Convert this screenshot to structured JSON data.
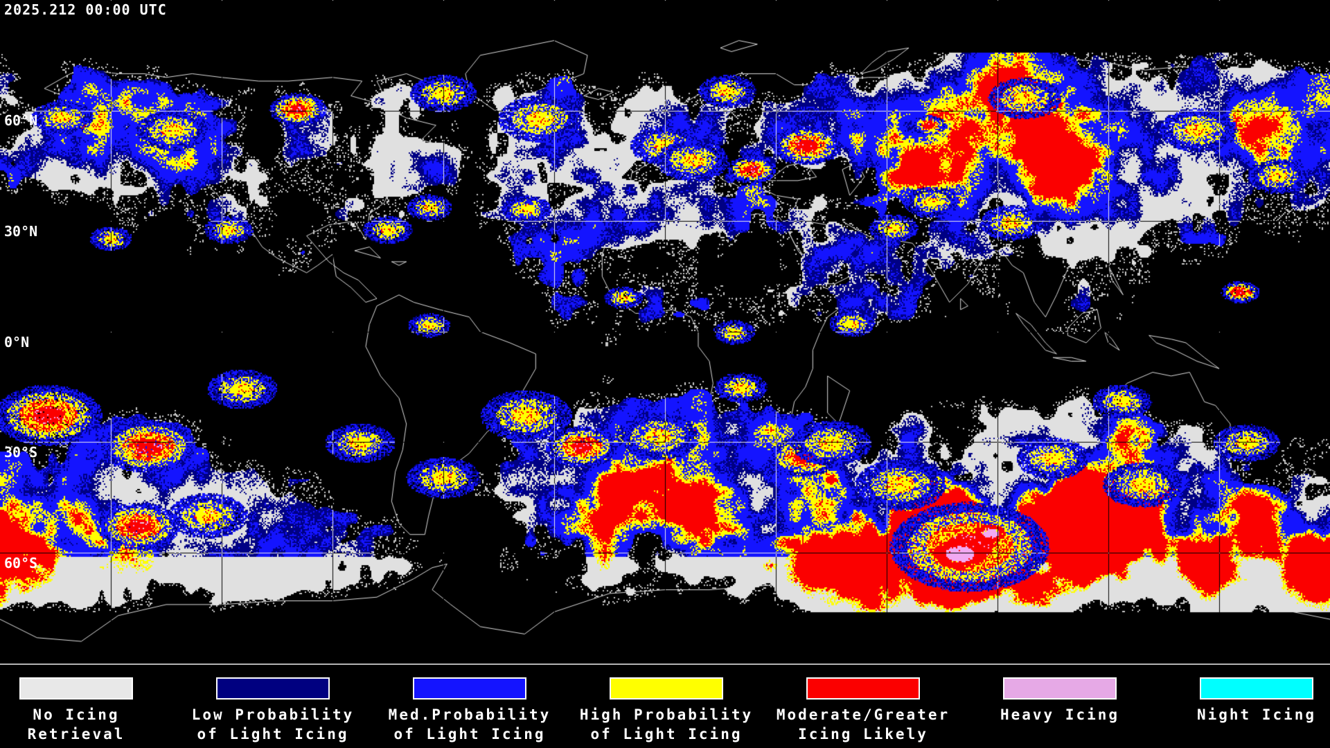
{
  "header": {
    "timestamp": "2025.212 00:00 UTC"
  },
  "map": {
    "latitude_labels": [
      "60°N",
      "30°N",
      "0°N",
      "30°S",
      "60°S"
    ]
  },
  "legend": {
    "items": [
      {
        "line1": "No Icing",
        "line2": "Retrieval",
        "color": "#e8e8e8"
      },
      {
        "line1": "Low Probability",
        "line2": "of Light Icing",
        "color": "#000080"
      },
      {
        "line1": "Med.Probability",
        "line2": "of Light Icing",
        "color": "#1414ff"
      },
      {
        "line1": "High Probability",
        "line2": "of Light Icing",
        "color": "#ffff00"
      },
      {
        "line1": "Moderate/Greater",
        "line2": "Icing Likely",
        "color": "#fb0000"
      },
      {
        "line1": "Heavy Icing",
        "line2": "",
        "color": "#e6a9e6"
      },
      {
        "line1": "Night Icing",
        "line2": "",
        "color": "#00ffff"
      }
    ]
  },
  "map_colors": {
    "background": "#000000",
    "gridline": "#ebebeb",
    "coastline": "#dedede",
    "no_icing": "#e0e0e0",
    "low_prob": "#000084",
    "med_prob": "#1414ff",
    "high_prob": "#ffff00",
    "moderate": "#fb0000",
    "heavy": "#f2a9f2"
  }
}
